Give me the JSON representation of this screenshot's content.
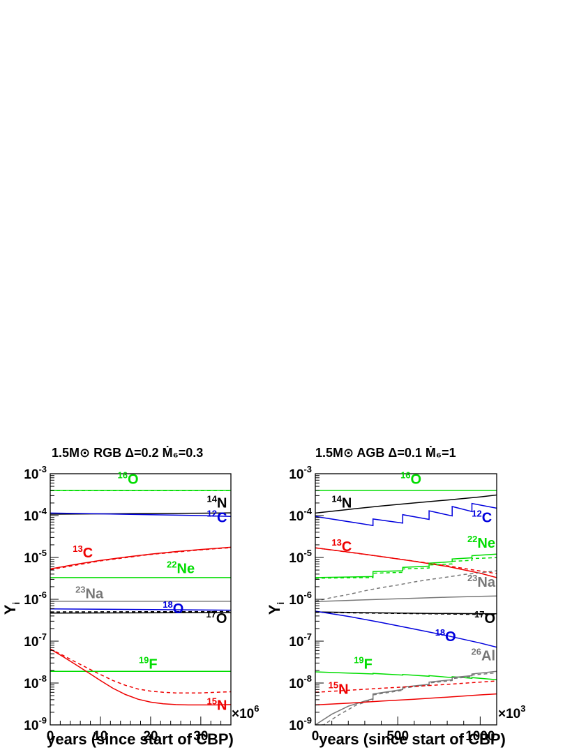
{
  "chart_data": [
    {
      "type": "line",
      "title": "1.5M⊙ RGB  Δ=0.2 Ṁ₆=0.3",
      "xlabel": "years (since start of CBP)",
      "ylabel": "Y",
      "ylabel_sub": "i",
      "x_multiplier": "×10",
      "x_multiplier_exp": "6",
      "xlim": [
        0,
        36
      ],
      "ylim": [
        1e-09,
        0.001
      ],
      "yscale": "log",
      "xticks": [
        "0",
        "10",
        "20",
        "30"
      ],
      "yticks": [
        {
          "base": "10",
          "exp": "-9"
        },
        {
          "base": "10",
          "exp": "-8"
        },
        {
          "base": "10",
          "exp": "-7"
        },
        {
          "base": "10",
          "exp": "-6"
        },
        {
          "base": "10",
          "exp": "-5"
        },
        {
          "base": "10",
          "exp": "-4"
        },
        {
          "base": "10",
          "exp": "-3"
        }
      ],
      "series": [
        {
          "name": "16O",
          "color": "#00dd00",
          "style": "solid",
          "x": [
            0,
            36
          ],
          "y": [
            0.0004,
            0.0004
          ]
        },
        {
          "name": "16O",
          "color": "#00dd00",
          "style": "dashed",
          "x": [
            0,
            36
          ],
          "y": [
            0.000395,
            0.000395
          ]
        },
        {
          "name": "14N",
          "color": "#000000",
          "style": "solid",
          "x": [
            0,
            10,
            20,
            30,
            36
          ],
          "y": [
            0.000108,
            0.00011,
            0.000112,
            0.000114,
            0.000116
          ]
        },
        {
          "name": "12C",
          "color": "#0000dd",
          "style": "solid",
          "x": [
            0,
            10,
            20,
            30,
            36
          ],
          "y": [
            0.000115,
            0.00011,
            0.000105,
            0.0001,
            9.5e-05
          ]
        },
        {
          "name": "13C",
          "color": "#ee0000",
          "style": "solid",
          "x": [
            0,
            5,
            10,
            15,
            20,
            25,
            30,
            36
          ],
          "y": [
            5.3e-06,
            6.8e-06,
            8.5e-06,
            1.02e-05,
            1.2e-05,
            1.38e-05,
            1.55e-05,
            1.75e-05
          ]
        },
        {
          "name": "13C",
          "color": "#ee0000",
          "style": "dashed",
          "x": [
            0,
            10,
            20,
            30,
            36
          ],
          "y": [
            5.1e-06,
            8.3e-06,
            1.18e-05,
            1.52e-05,
            1.72e-05
          ]
        },
        {
          "name": "22Ne",
          "color": "#00dd00",
          "style": "solid",
          "x": [
            0,
            36
          ],
          "y": [
            3.3e-06,
            3.3e-06
          ]
        },
        {
          "name": "23Na",
          "color": "#777777",
          "style": "solid",
          "x": [
            0,
            36
          ],
          "y": [
            9e-07,
            9e-07
          ]
        },
        {
          "name": "18O",
          "color": "#0000dd",
          "style": "solid",
          "x": [
            0,
            36
          ],
          "y": [
            5.9e-07,
            5.5e-07
          ]
        },
        {
          "name": "17O",
          "color": "#000000",
          "style": "solid",
          "x": [
            0,
            36
          ],
          "y": [
            4.7e-07,
            4.8e-07
          ]
        },
        {
          "name": "17O",
          "color": "#000000",
          "style": "dashed",
          "x": [
            0,
            36
          ],
          "y": [
            5e-07,
            5.1e-07
          ]
        },
        {
          "name": "19F",
          "color": "#00dd00",
          "style": "solid",
          "x": [
            0,
            36
          ],
          "y": [
            1.9e-08,
            1.9e-08
          ]
        },
        {
          "name": "15N",
          "color": "#ee0000",
          "style": "solid",
          "x": [
            0,
            2.5,
            5,
            7.5,
            10,
            12.5,
            15,
            17.5,
            20,
            22.5,
            25,
            27.5,
            30,
            33,
            36
          ],
          "y": [
            6.5e-08,
            4.3e-08,
            2.8e-08,
            1.8e-08,
            1.15e-08,
            7.5e-09,
            5.3e-09,
            4.1e-09,
            3.5e-09,
            3.2e-09,
            3.05e-09,
            3e-09,
            3e-09,
            3e-09,
            3.05e-09
          ]
        },
        {
          "name": "15N",
          "color": "#ee0000",
          "style": "dashed",
          "x": [
            0,
            2.5,
            5,
            7.5,
            10,
            12.5,
            15,
            17.5,
            20,
            22.5,
            25,
            30,
            33,
            36
          ],
          "y": [
            6.5e-08,
            4.6e-08,
            3.2e-08,
            2.25e-08,
            1.6e-08,
            1.15e-08,
            8.8e-09,
            7.2e-09,
            6.4e-09,
            6e-09,
            5.8e-09,
            5.8e-09,
            6e-09,
            6.2e-09
          ]
        }
      ],
      "labels": [
        {
          "iso": "16",
          "el": "O",
          "color": "#00dd00",
          "x": 15.5,
          "y": 0.00057
        },
        {
          "iso": "14",
          "el": "N",
          "color": "#000000",
          "x": 35.5,
          "y": 0.000155
        },
        {
          "iso": "12",
          "el": "C",
          "color": "#0000dd",
          "x": 35.5,
          "y": 7e-05
        },
        {
          "iso": "13",
          "el": "C",
          "color": "#ee0000",
          "x": 6.5,
          "y": 1e-05
        },
        {
          "iso": "22",
          "el": "Ne",
          "color": "#00dd00",
          "x": 26.0,
          "y": 4.2e-06
        },
        {
          "iso": "23",
          "el": "Na",
          "color": "#777777",
          "x": 7.8,
          "y": 1.05e-06
        },
        {
          "iso": "18",
          "el": "O",
          "color": "#0000dd",
          "x": 24.5,
          "y": 4.6e-07
        },
        {
          "iso": "17",
          "el": "O",
          "color": "#000000",
          "x": 35.5,
          "y": 2.7e-07
        },
        {
          "iso": "19",
          "el": "F",
          "color": "#00dd00",
          "x": 19.5,
          "y": 2.2e-08
        },
        {
          "iso": "15",
          "el": "N",
          "color": "#ee0000",
          "x": 35.5,
          "y": 2.3e-09
        }
      ]
    },
    {
      "type": "line",
      "title": "1.5M⊙ AGB  Δ=0.1 Ṁ₆=1",
      "xlabel": "years (since start of CBP)",
      "ylabel": "Y",
      "ylabel_sub": "i",
      "x_multiplier": "×10",
      "x_multiplier_exp": "3",
      "xlim": [
        0,
        1100
      ],
      "ylim": [
        1e-09,
        0.001
      ],
      "yscale": "log",
      "xticks": [
        "0",
        "500",
        "1000"
      ],
      "yticks": [
        {
          "base": "10",
          "exp": "-9"
        },
        {
          "base": "10",
          "exp": "-8"
        },
        {
          "base": "10",
          "exp": "-7"
        },
        {
          "base": "10",
          "exp": "-6"
        },
        {
          "base": "10",
          "exp": "-5"
        },
        {
          "base": "10",
          "exp": "-4"
        },
        {
          "base": "10",
          "exp": "-3"
        }
      ],
      "series": [
        {
          "name": "16O",
          "color": "#00dd00",
          "style": "solid",
          "x": [
            0,
            1100
          ],
          "y": [
            0.0004,
            0.0004
          ]
        },
        {
          "name": "14N",
          "color": "#000000",
          "style": "solid",
          "x": [
            0,
            200,
            400,
            600,
            800,
            1000,
            1100
          ],
          "y": [
            0.000115,
            0.00014,
            0.00017,
            0.0002,
            0.000235,
            0.00028,
            0.00031
          ]
        },
        {
          "name": "12C",
          "color": "#0000dd",
          "style": "solid",
          "x": [
            0,
            350,
            350,
            530,
            530,
            690,
            690,
            830,
            830,
            950,
            950,
            1100
          ],
          "y": [
            9.5e-05,
            5.8e-05,
            8.3e-05,
            6.6e-05,
            0.000105,
            8.1e-05,
            0.00013,
            9.8e-05,
            0.000165,
            0.000125,
            0.000195,
            0.00015
          ]
        },
        {
          "name": "13C",
          "color": "#ee0000",
          "style": "solid",
          "x": [
            0,
            200,
            400,
            600,
            800,
            1000,
            1100
          ],
          "y": [
            1.7e-05,
            1.35e-05,
            1.05e-05,
            8.1e-06,
            6.1e-06,
            4.2e-06,
            3.3e-06
          ]
        },
        {
          "name": "13C",
          "color": "#ee0000",
          "style": "dashed",
          "x": [
            0,
            400,
            800,
            1100
          ],
          "y": [
            1.7e-05,
            1.05e-05,
            6.3e-06,
            4.1e-06
          ]
        },
        {
          "name": "22Ne",
          "color": "#00dd00",
          "style": "solid",
          "x": [
            0,
            350,
            350,
            530,
            530,
            690,
            690,
            830,
            830,
            950,
            950,
            1100
          ],
          "y": [
            3.3e-06,
            3.5e-06,
            4.6e-06,
            4.8e-06,
            5.8e-06,
            6.2e-06,
            7.3e-06,
            7.9e-06,
            9.2e-06,
            9.8e-06,
            1.1e-05,
            1.2e-05
          ]
        },
        {
          "name": "22Ne",
          "color": "#00dd00",
          "style": "dashed",
          "x": [
            0,
            350,
            350,
            530,
            530,
            690,
            690,
            830,
            830,
            950,
            950,
            1100
          ],
          "y": [
            3.2e-06,
            3.3e-06,
            4.2e-06,
            4.4e-06,
            5.3e-06,
            5.6e-06,
            6.6e-06,
            7e-06,
            8.1e-06,
            8.5e-06,
            9.4e-06,
            9.9e-06
          ]
        },
        {
          "name": "23Na",
          "color": "#777777",
          "style": "solid",
          "x": [
            0,
            200,
            400,
            600,
            800,
            1000,
            1100
          ],
          "y": [
            8.8e-07,
            9.4e-07,
            1e-06,
            1.06e-06,
            1.12e-06,
            1.18e-06,
            1.2e-06
          ]
        },
        {
          "name": "23Na",
          "color": "#777777",
          "style": "dashed",
          "x": [
            0,
            100,
            200,
            300,
            400,
            500,
            600,
            700,
            800,
            900,
            1000,
            1100
          ],
          "y": [
            9e-07,
            1.1e-06,
            1.3e-06,
            1.6e-06,
            1.9e-06,
            2.2e-06,
            2.6e-06,
            3e-06,
            3.4e-06,
            3.9e-06,
            4.3e-06,
            4.8e-06
          ]
        },
        {
          "name": "17O",
          "color": "#000000",
          "style": "solid",
          "x": [
            0,
            300,
            700,
            1100
          ],
          "y": [
            5e-07,
            4.8e-07,
            4.6e-07,
            4.5e-07
          ]
        },
        {
          "name": "17O",
          "color": "#000000",
          "style": "dashed",
          "x": [
            0,
            300,
            700,
            1100
          ],
          "y": [
            4.9e-07,
            4.7e-07,
            4.5e-07,
            4.3e-07
          ]
        },
        {
          "name": "18O",
          "color": "#0000dd",
          "style": "solid",
          "x": [
            0,
            200,
            400,
            600,
            800,
            1000,
            1100
          ],
          "y": [
            5.2e-07,
            3.9e-07,
            2.8e-07,
            1.95e-07,
            1.35e-07,
            9e-08,
            7.2e-08
          ]
        },
        {
          "name": "19F",
          "color": "#00dd00",
          "style": "solid",
          "x": [
            0,
            350,
            350,
            530,
            530,
            690,
            690,
            830,
            830,
            950,
            950,
            1100
          ],
          "y": [
            1.85e-08,
            1.65e-08,
            1.7e-08,
            1.55e-08,
            1.6e-08,
            1.45e-08,
            1.5e-08,
            1.35e-08,
            1.42e-08,
            1.3e-08,
            1.35e-08,
            1.2e-08
          ]
        },
        {
          "name": "26Al",
          "color": "#777777",
          "style": "solid",
          "x": [
            0,
            100,
            200,
            300,
            350,
            350,
            530,
            530,
            690,
            690,
            830,
            830,
            950,
            950,
            1100
          ],
          "y": [
            1e-09,
            1.8e-09,
            2.8e-09,
            3.7e-09,
            4.2e-09,
            5.5e-09,
            7e-09,
            8e-09,
            9.3e-09,
            1.05e-08,
            1.2e-08,
            1.35e-08,
            1.5e-08,
            1.65e-08,
            1.9e-08
          ]
        },
        {
          "name": "26Al",
          "color": "#777777",
          "style": "dashed",
          "x": [
            0,
            50,
            150,
            250,
            350,
            350,
            530,
            530,
            690,
            690,
            830,
            830,
            950,
            950,
            1100
          ],
          "y": [
            1e-09,
            1e-09,
            1.8e-09,
            3e-09,
            4e-09,
            5.2e-09,
            6.7e-09,
            7.6e-09,
            8.9e-09,
            1e-08,
            1.15e-08,
            1.28e-08,
            1.42e-08,
            1.55e-08,
            1.75e-08
          ]
        },
        {
          "name": "15N",
          "color": "#ee0000",
          "style": "solid",
          "x": [
            0,
            200,
            400,
            600,
            800,
            1000,
            1100
          ],
          "y": [
            3e-09,
            3.3e-09,
            3.7e-09,
            4.1e-09,
            4.6e-09,
            5.2e-09,
            5.5e-09
          ]
        },
        {
          "name": "15N",
          "color": "#ee0000",
          "style": "dashed",
          "x": [
            0,
            200,
            400,
            600,
            800,
            1000,
            1100
          ],
          "y": [
            6e-09,
            6.7e-09,
            7.5e-09,
            8.3e-09,
            9.3e-09,
            1.05e-08,
            1.12e-08
          ]
        }
      ],
      "labels": [
        {
          "iso": "16",
          "el": "O",
          "color": "#00dd00",
          "x": 580,
          "y": 0.00057
        },
        {
          "iso": "14",
          "el": "N",
          "color": "#000000",
          "x": 160,
          "y": 0.000155
        },
        {
          "iso": "12",
          "el": "C",
          "color": "#0000dd",
          "x": 1010,
          "y": 7e-05
        },
        {
          "iso": "13",
          "el": "C",
          "color": "#ee0000",
          "x": 160,
          "y": 1.4e-05
        },
        {
          "iso": "22",
          "el": "Ne",
          "color": "#00dd00",
          "x": 1100,
          "y": 1.7e-05
        },
        {
          "iso": "23",
          "el": "Na",
          "color": "#777777",
          "x": 1100,
          "y": 2e-06
        },
        {
          "iso": "17",
          "el": "O",
          "color": "#000000",
          "x": 1100,
          "y": 2.7e-07
        },
        {
          "iso": "18",
          "el": "O",
          "color": "#0000dd",
          "x": 790,
          "y": 1e-07
        },
        {
          "iso": "26",
          "el": "Al",
          "color": "#777777",
          "x": 1100,
          "y": 3.5e-08
        },
        {
          "iso": "19",
          "el": "F",
          "color": "#00dd00",
          "x": 290,
          "y": 2.2e-08
        },
        {
          "iso": "15",
          "el": "N",
          "color": "#ee0000",
          "x": 140,
          "y": 5.5e-09
        }
      ]
    }
  ]
}
